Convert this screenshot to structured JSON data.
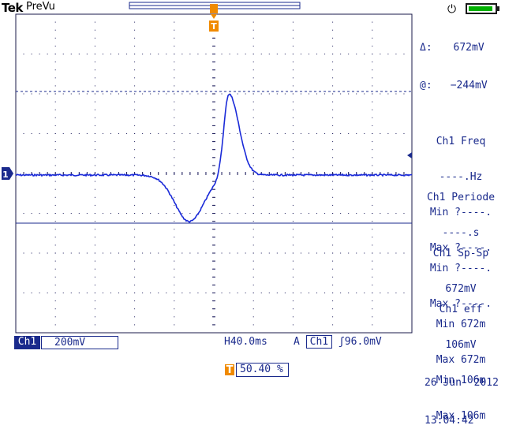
{
  "header": {
    "brand": "Tek",
    "mode": "PreVu"
  },
  "cursor_readout": {
    "delta_label": "Δ:",
    "delta_value": "672mV",
    "at_label": "@:",
    "at_value": "−244mV"
  },
  "measurements": [
    {
      "title": "Ch1 Freq",
      "value": "----.Hz",
      "min": "Min ?----.",
      "max": "Max ?----."
    },
    {
      "title": "Ch1 Periode",
      "value": "----.s",
      "min": "Min ?----.",
      "max": "Max ?----."
    },
    {
      "title": "Ch1 Sp-Sp",
      "value": "672mV",
      "min": "Min 672m",
      "max": "Max 672m"
    },
    {
      "title": "Ch1 eff",
      "value": "106mV",
      "min": "Min 106m",
      "max": "Max 106m"
    }
  ],
  "bottom": {
    "channel": "Ch1",
    "scale": "200mV",
    "timebase": "H40.0ms",
    "trigger_mode": "A",
    "trigger_source": "Ch1",
    "trigger_slope_symbol": "ʃ",
    "trigger_level": "96.0mV",
    "trigger_position": "50.40 %",
    "trigger_marker": "T"
  },
  "datetime": {
    "date": "26 Jun  2012",
    "time": "13:04:42"
  },
  "channel_marker": "1",
  "colors": {
    "trace": "#1a2ad8",
    "grid": "#1a1a5a",
    "accent": "#f08a00",
    "battery": "#00b000"
  }
}
